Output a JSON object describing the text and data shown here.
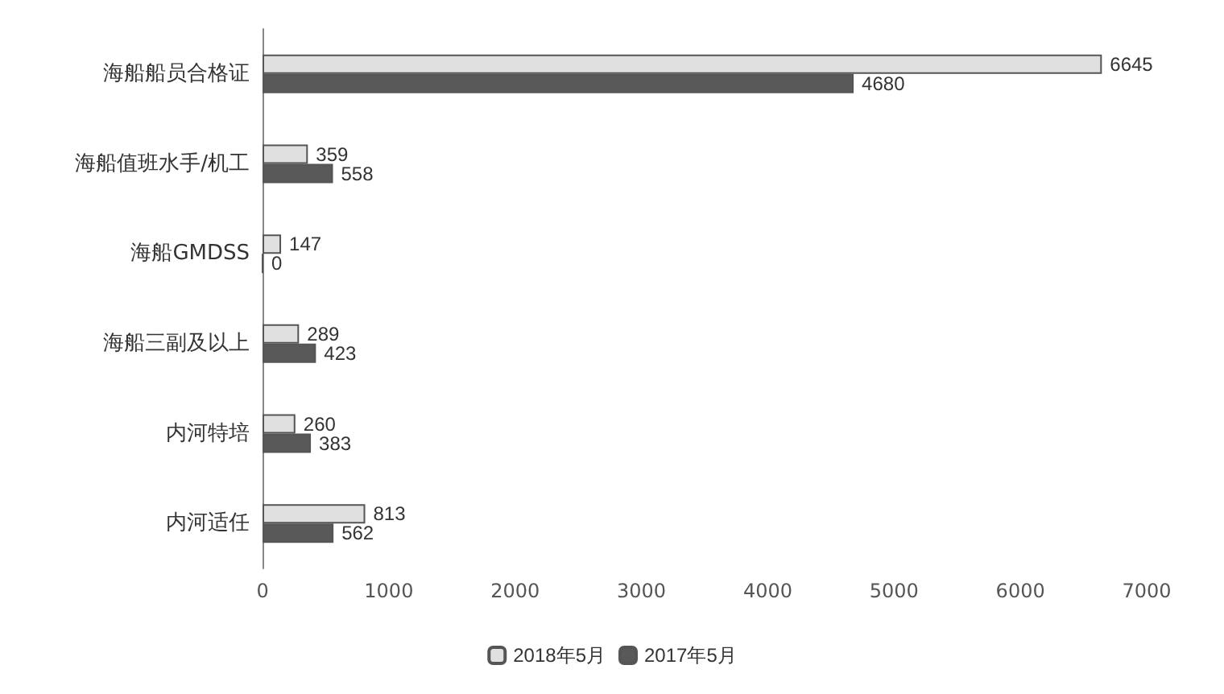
{
  "chart_data": {
    "type": "bar",
    "orientation": "horizontal",
    "categories": [
      "海船船员合格证",
      "海船值班水手/机工",
      "海船GMDSS",
      "海船三副及以上",
      "内河特培",
      "内河适任"
    ],
    "series": [
      {
        "name": "2018年5月",
        "color": "#e0e0e0",
        "values": [
          6645,
          359,
          147,
          289,
          260,
          813
        ]
      },
      {
        "name": "2017年5月",
        "color": "#595959",
        "values": [
          4680,
          558,
          0,
          423,
          383,
          562
        ]
      }
    ],
    "xlim": [
      0,
      7000
    ],
    "xticks": [
      0,
      1000,
      2000,
      3000,
      4000,
      5000,
      6000,
      7000
    ],
    "grid": false,
    "legend": "bottom",
    "data_labels": true
  }
}
